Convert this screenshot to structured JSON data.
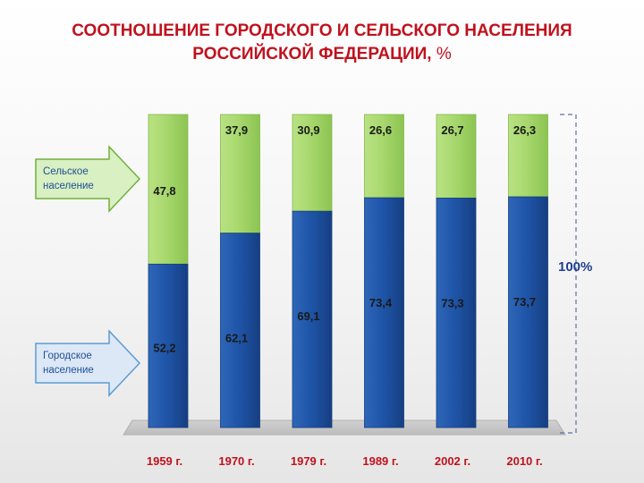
{
  "title": {
    "line1": "СООТНОШЕНИЕ ГОРОДСКОГО И СЕЛЬСКОГО НАСЕЛЕНИЯ",
    "line2": "РОССИЙСКОЙ ФЕДЕРАЦИИ,",
    "unit": "%"
  },
  "legend": {
    "rural_line1": "Сельское",
    "rural_line2": "население",
    "urban_line1": "Городское",
    "urban_line2": "население"
  },
  "total_label": "100%",
  "colors": {
    "urban": "#1f55a8",
    "rural": "#a8d86e",
    "title": "#c0121e",
    "arrow_fill": "#d8f0c2",
    "arrow_stroke": "#6fb13b",
    "arrow_fill_urban": "#dce8f6",
    "arrow_stroke_urban": "#5b9bd5"
  },
  "chart_data": {
    "type": "bar",
    "stacked": true,
    "categories": [
      "1959 г.",
      "1970 г.",
      "1979 г.",
      "1989 г.",
      "2002 г.",
      "2010 г."
    ],
    "series": [
      {
        "name": "Городское население",
        "values": [
          52.2,
          62.1,
          69.1,
          73.4,
          73.3,
          73.7
        ],
        "labels": [
          "52,2",
          "62,1",
          "69,1",
          "73,4",
          "73,3",
          "73,7"
        ]
      },
      {
        "name": "Сельское население",
        "values": [
          47.8,
          37.9,
          30.9,
          26.6,
          26.7,
          26.3
        ],
        "labels": [
          "47,8",
          "37,9",
          "30,9",
          "26,6",
          "26,7",
          "26,3"
        ]
      }
    ],
    "ylim": [
      0,
      100
    ],
    "grid": false,
    "legend_position": "left"
  }
}
